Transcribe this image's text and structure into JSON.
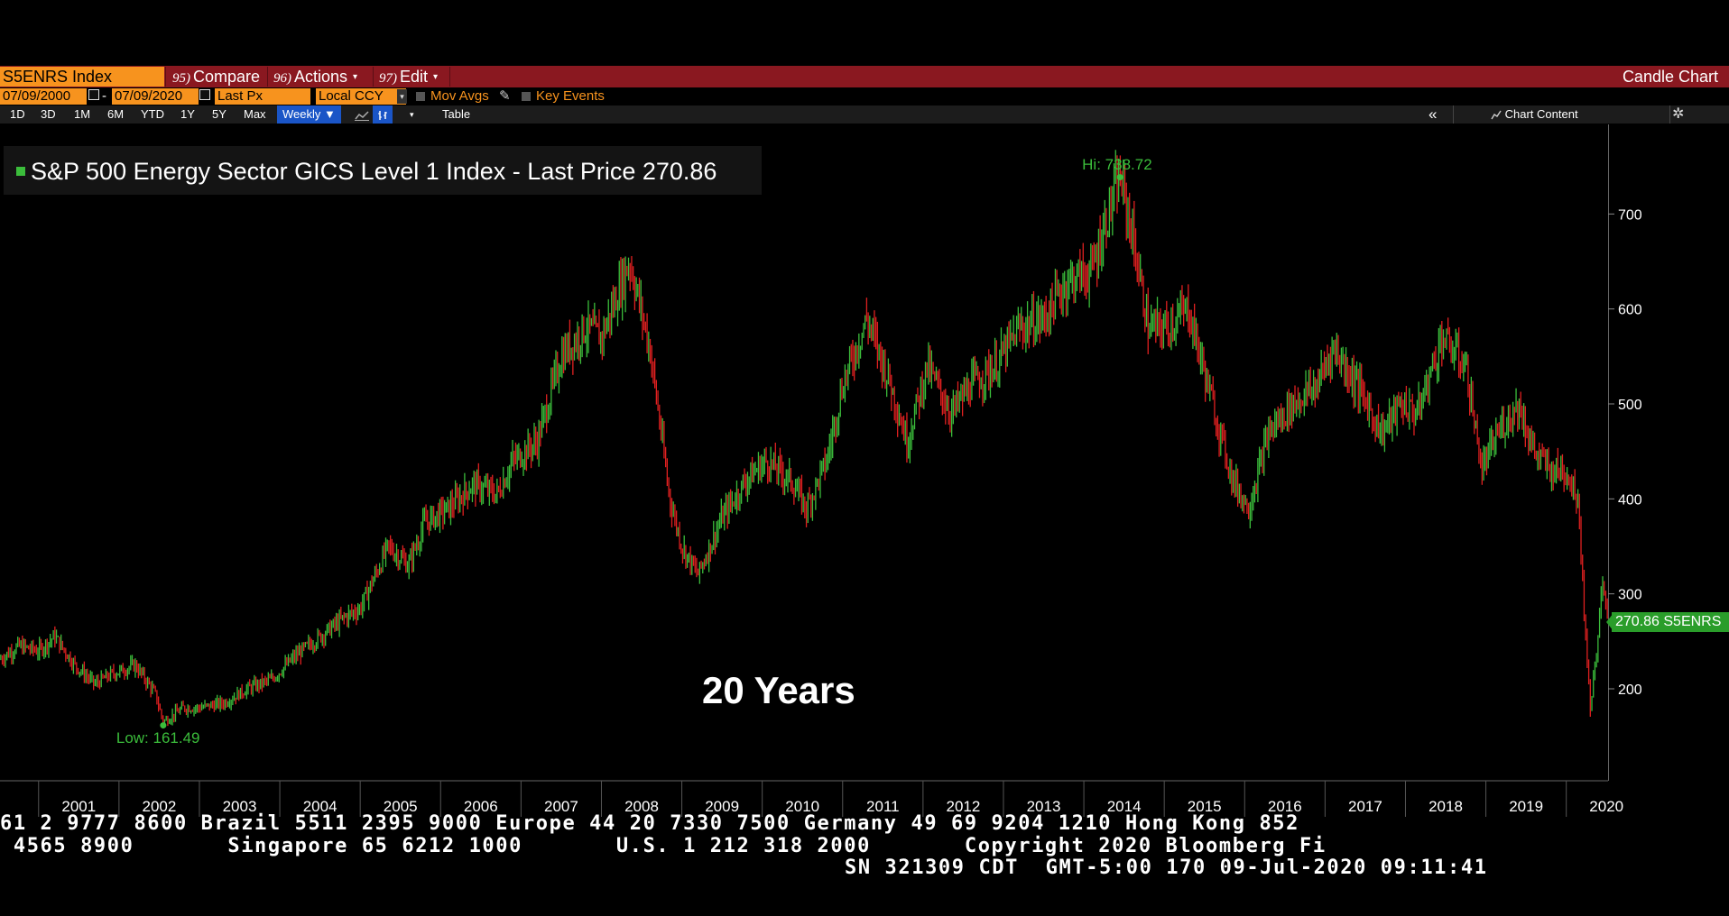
{
  "command_bar": {
    "ticker": "S5ENRS Index",
    "compare_num": "95)",
    "compare_label": "Compare",
    "actions_num": "96)",
    "actions_label": "Actions",
    "edit_num": "97)",
    "edit_label": "Edit",
    "chart_type": "Candle Chart",
    "dropdown_glyph": "▾"
  },
  "settings_row": {
    "start_date": "07/09/2000",
    "date_sep": "-",
    "end_date": "07/09/2020",
    "field": "Last Px",
    "currency": "Local CCY",
    "mov_avgs": "Mov Avgs",
    "key_events": "Key Events"
  },
  "toolbar": {
    "periods": [
      "1D",
      "3D",
      "1M",
      "6M",
      "YTD",
      "1Y",
      "5Y",
      "Max"
    ],
    "frequency": "Weekly ▼",
    "table": "Table",
    "chart_content": "Chart Content",
    "collapse": "«",
    "settings_icon": "gear-icon",
    "line_icon": "line-chart-icon",
    "bar_icon": "bar-chart-icon"
  },
  "legend": {
    "text": "S&P 500 Energy Sector GICS Level 1 Index - Last Price 270.86",
    "color": "#3bbd3b"
  },
  "annotations": {
    "hi": "Hi: 738.72",
    "low": "Low: 161.49",
    "overlay": "20 Years",
    "price_tag": "270.86 S5ENRS"
  },
  "colors": {
    "up_candle": "#3bbd3b",
    "down_candle": "#e02020",
    "accent_orange": "#f7931e",
    "command_bar": "#8a1820",
    "selected_blue": "#1a55c7"
  },
  "chart_data": {
    "type": "candlestick",
    "title": "S&P 500 Energy Sector GICS Level 1 Index - Last Price 270.86",
    "frequency": "Weekly",
    "date_range": [
      "07/09/2000",
      "07/09/2020"
    ],
    "x_ticks": [
      "2001",
      "2002",
      "2003",
      "2004",
      "2005",
      "2006",
      "2007",
      "2008",
      "2009",
      "2010",
      "2011",
      "2012",
      "2013",
      "2014",
      "2015",
      "2016",
      "2017",
      "2018",
      "2019",
      "2020"
    ],
    "y_ticks": [
      200,
      300,
      400,
      500,
      600,
      700
    ],
    "ylim": [
      120,
      800
    ],
    "last_price": 270.86,
    "high": {
      "date": "2014.45",
      "value": 738.72
    },
    "low": {
      "date": "2002.55",
      "value": 161.49
    },
    "approx_path": [
      [
        2000.5,
        230
      ],
      [
        2000.75,
        245
      ],
      [
        2001.0,
        240
      ],
      [
        2001.2,
        255
      ],
      [
        2001.45,
        225
      ],
      [
        2001.7,
        205
      ],
      [
        2001.9,
        215
      ],
      [
        2002.2,
        225
      ],
      [
        2002.45,
        195
      ],
      [
        2002.55,
        165
      ],
      [
        2002.8,
        180
      ],
      [
        2003.0,
        180
      ],
      [
        2003.3,
        185
      ],
      [
        2003.6,
        200
      ],
      [
        2003.9,
        210
      ],
      [
        2004.2,
        235
      ],
      [
        2004.5,
        255
      ],
      [
        2004.8,
        275
      ],
      [
        2005.0,
        285
      ],
      [
        2005.35,
        350
      ],
      [
        2005.6,
        330
      ],
      [
        2005.8,
        375
      ],
      [
        2006.1,
        390
      ],
      [
        2006.4,
        415
      ],
      [
        2006.7,
        405
      ],
      [
        2006.9,
        440
      ],
      [
        2007.2,
        460
      ],
      [
        2007.5,
        550
      ],
      [
        2007.8,
        580
      ],
      [
        2008.0,
        570
      ],
      [
        2008.35,
        650
      ],
      [
        2008.6,
        560
      ],
      [
        2008.85,
        400
      ],
      [
        2009.0,
        350
      ],
      [
        2009.2,
        320
      ],
      [
        2009.5,
        380
      ],
      [
        2009.8,
        420
      ],
      [
        2010.05,
        440
      ],
      [
        2010.35,
        420
      ],
      [
        2010.55,
        390
      ],
      [
        2010.8,
        440
      ],
      [
        2011.0,
        520
      ],
      [
        2011.3,
        590
      ],
      [
        2011.6,
        520
      ],
      [
        2011.8,
        460
      ],
      [
        2012.05,
        540
      ],
      [
        2012.35,
        490
      ],
      [
        2012.6,
        520
      ],
      [
        2012.9,
        540
      ],
      [
        2013.2,
        580
      ],
      [
        2013.5,
        590
      ],
      [
        2013.8,
        630
      ],
      [
        2014.1,
        640
      ],
      [
        2014.3,
        700
      ],
      [
        2014.45,
        738
      ],
      [
        2014.6,
        680
      ],
      [
        2014.8,
        580
      ],
      [
        2015.0,
        580
      ],
      [
        2015.3,
        600
      ],
      [
        2015.6,
        500
      ],
      [
        2015.85,
        420
      ],
      [
        2016.05,
        390
      ],
      [
        2016.3,
        470
      ],
      [
        2016.6,
        500
      ],
      [
        2016.9,
        520
      ],
      [
        2017.1,
        560
      ],
      [
        2017.4,
        520
      ],
      [
        2017.7,
        470
      ],
      [
        2017.95,
        500
      ],
      [
        2018.15,
        490
      ],
      [
        2018.45,
        570
      ],
      [
        2018.75,
        540
      ],
      [
        2018.95,
        430
      ],
      [
        2019.15,
        470
      ],
      [
        2019.4,
        500
      ],
      [
        2019.6,
        450
      ],
      [
        2019.8,
        430
      ],
      [
        2020.0,
        430
      ],
      [
        2020.15,
        400
      ],
      [
        2020.25,
        240
      ],
      [
        2020.3,
        180
      ],
      [
        2020.4,
        260
      ],
      [
        2020.45,
        310
      ],
      [
        2020.52,
        271
      ]
    ]
  },
  "footer": {
    "line1": "61 2 9777 8600 Brazil 5511 2395 9000 Europe 44 20 7330 7500 Germany 49 69 9204 1210 Hong Kong 852",
    "line2": " 4565 8900       Singapore 65 6212 1000       U.S. 1 212 318 2000       Copyright 2020 Bloomberg Fi",
    "line3": "SN 321309 CDT  GMT-5:00 170 09-Jul-2020 09:11:41"
  }
}
